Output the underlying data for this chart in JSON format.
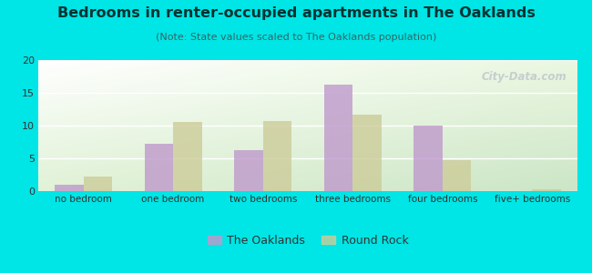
{
  "title": "Bedrooms in renter-occupied apartments in The Oaklands",
  "subtitle": "(Note: State values scaled to The Oaklands population)",
  "categories": [
    "no bedroom",
    "one bedroom",
    "two bedrooms",
    "three bedrooms",
    "four bedrooms",
    "five+ bedrooms"
  ],
  "oaklands_values": [
    1.0,
    7.2,
    6.2,
    16.2,
    10.0,
    0.0
  ],
  "roundrock_values": [
    2.2,
    10.5,
    10.7,
    11.7,
    4.7,
    0.3
  ],
  "oaklands_color": "#bf99cc",
  "roundrock_color": "#cccc99",
  "ylim": [
    0,
    20
  ],
  "yticks": [
    0,
    5,
    10,
    15,
    20
  ],
  "bar_width": 0.32,
  "background_color": "#00e5e5",
  "grid_color": "#ffffff",
  "title_color": "#003333",
  "subtitle_color": "#336666",
  "tick_color": "#333333",
  "legend_oakland": "The Oaklands",
  "legend_roundrock": "Round Rock",
  "watermark": "City-Data.com"
}
